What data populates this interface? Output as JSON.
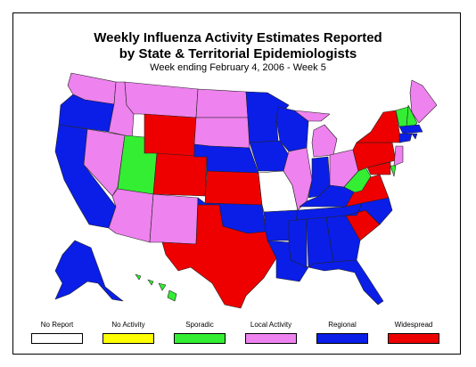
{
  "title_line1": "Weekly Influenza Activity Estimates Reported",
  "title_line2": "by State & Territorial Epidemiologists",
  "subtitle": "Week ending February 4, 2006 - Week 5",
  "colors": {
    "no_report": "#ffffff",
    "no_activity": "#ffff00",
    "sporadic": "#33ee33",
    "local": "#ee82ee",
    "regional": "#0a1ee8",
    "widespread": "#ee0000"
  },
  "legend": [
    {
      "label": "No Report",
      "color": "#ffffff"
    },
    {
      "label": "No Activity",
      "color": "#ffff00"
    },
    {
      "label": "Sporadic",
      "color": "#33ee33"
    },
    {
      "label": "Local Activity",
      "color": "#ee82ee"
    },
    {
      "label": "Regional",
      "color": "#0a1ee8"
    },
    {
      "label": "Widespread",
      "color": "#ee0000"
    }
  ],
  "states": {
    "WA": "local",
    "OR": "regional",
    "CA": "regional",
    "NV": "local",
    "ID": "local",
    "MT": "local",
    "WY": "widespread",
    "UT": "sporadic",
    "AZ": "local",
    "CO": "widespread",
    "NM": "local",
    "ND": "local",
    "SD": "local",
    "NE": "regional",
    "KS": "widespread",
    "OK": "regional",
    "TX": "widespread",
    "MN": "regional",
    "IA": "regional",
    "MO": "no_report",
    "AR": "regional",
    "LA": "regional",
    "WI": "regional",
    "IL": "local",
    "MI": "local",
    "IN": "regional",
    "OH": "local",
    "KY": "regional",
    "TN": "regional",
    "MS": "regional",
    "AL": "regional",
    "GA": "regional",
    "FL": "regional",
    "SC": "widespread",
    "NC": "regional",
    "VA": "widespread",
    "WV": "sporadic",
    "PA": "widespread",
    "NY": "widespread",
    "ME": "local",
    "NH": "sporadic",
    "VT": "sporadic",
    "MA": "regional",
    "CT": "regional",
    "RI": "regional",
    "NJ": "local",
    "DE": "sporadic",
    "MD": "widespread",
    "AK": "regional",
    "HI": "sporadic"
  }
}
